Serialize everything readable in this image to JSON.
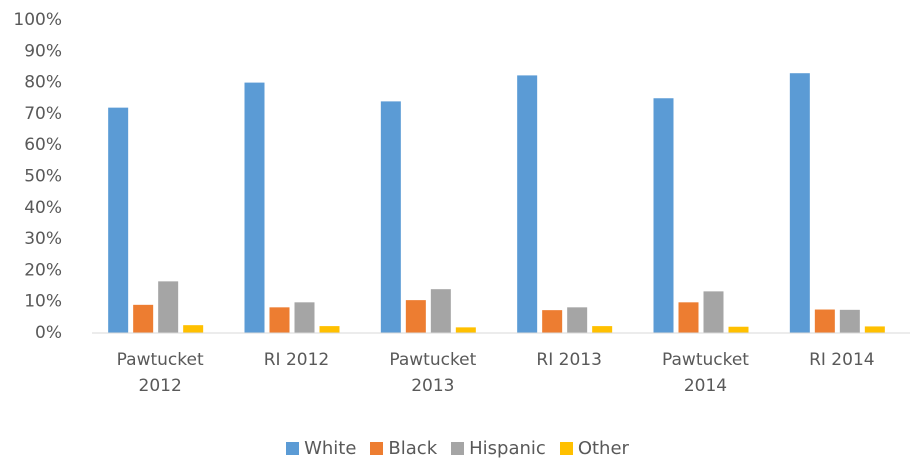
{
  "chart_data": {
    "type": "bar",
    "categories": [
      "Pawtucket 2012",
      "RI 2012",
      "Pawtucket 2013",
      "RI 2013",
      "Pawtucket 2014",
      "RI 2014"
    ],
    "series": [
      {
        "name": "White",
        "color": "#5b9bd5",
        "values": [
          72,
          80,
          74,
          82.3,
          75,
          83
        ]
      },
      {
        "name": "Black",
        "color": "#ed7d31",
        "values": [
          9,
          8.2,
          10.5,
          7.3,
          9.8,
          7.5
        ]
      },
      {
        "name": "Hispanic",
        "color": "#a5a5a5",
        "values": [
          16.5,
          9.8,
          14,
          8.2,
          13.3,
          7.4
        ]
      },
      {
        "name": "Other",
        "color": "#ffc000",
        "values": [
          2.5,
          2.2,
          1.8,
          2.2,
          2,
          2.1
        ]
      }
    ],
    "ylim": [
      0,
      100
    ],
    "yticks": [
      {
        "value": 0,
        "label": "0%"
      },
      {
        "value": 10,
        "label": "10%"
      },
      {
        "value": 20,
        "label": "20%"
      },
      {
        "value": 30,
        "label": "30%"
      },
      {
        "value": 40,
        "label": "40%"
      },
      {
        "value": 50,
        "label": "50%"
      },
      {
        "value": 60,
        "label": "60%"
      },
      {
        "value": 70,
        "label": "70%"
      },
      {
        "value": 80,
        "label": "80%"
      },
      {
        "value": 90,
        "label": "90%"
      },
      {
        "value": 100,
        "label": "100%"
      }
    ],
    "grid": false,
    "legend": "bottom"
  }
}
